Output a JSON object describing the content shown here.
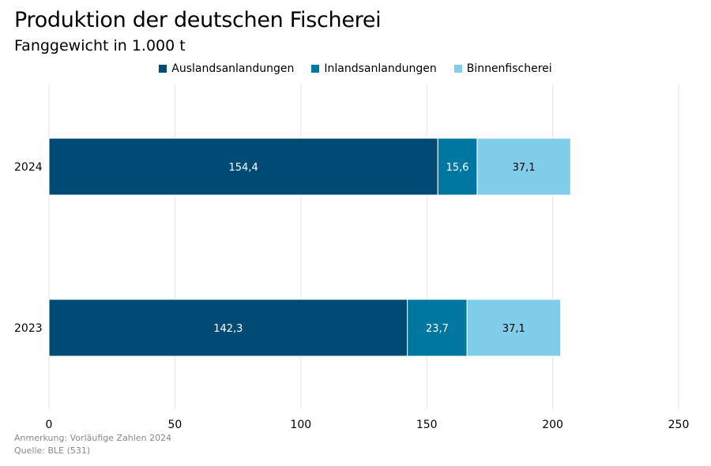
{
  "title": "Produktion der deutschen Fischerei",
  "subtitle": "Fanggewicht in 1.000 t",
  "notes": {
    "remark": "Anmerkung: Vorläufige Zahlen 2024",
    "source": "Quelle: BLE (531)"
  },
  "colors": {
    "auslands": "#004b76",
    "inlands": "#0077a0",
    "binnen": "#80cde9",
    "grid": "#e6e6e6"
  },
  "chart_data": {
    "type": "bar",
    "orientation": "horizontal",
    "stacked": true,
    "title": "Produktion der deutschen Fischerei",
    "subtitle": "Fanggewicht in 1.000 t",
    "xlabel": "",
    "ylabel": "",
    "xlim": [
      0,
      250
    ],
    "ticks": [
      0,
      50,
      100,
      150,
      200,
      250
    ],
    "tick_labels": [
      "0",
      "50",
      "100",
      "150",
      "200",
      "250"
    ],
    "grid": true,
    "legend_position": "top-center",
    "categories": [
      "2024",
      "2023"
    ],
    "series": [
      {
        "name": "Auslandsanlandungen",
        "color": "#004b76",
        "label_color": "#ffffff",
        "values": [
          154.4,
          142.3
        ],
        "labels": [
          "154,4",
          "142,3"
        ]
      },
      {
        "name": "Inlandsanlandungen",
        "color": "#0077a0",
        "label_color": "#ffffff",
        "values": [
          15.6,
          23.7
        ],
        "labels": [
          "15,6",
          "23,7"
        ]
      },
      {
        "name": "Binnenfischerei",
        "color": "#80cde9",
        "label_color": "#000000",
        "values": [
          37.1,
          37.1
        ],
        "labels": [
          "37,1",
          "37,1"
        ]
      }
    ]
  }
}
